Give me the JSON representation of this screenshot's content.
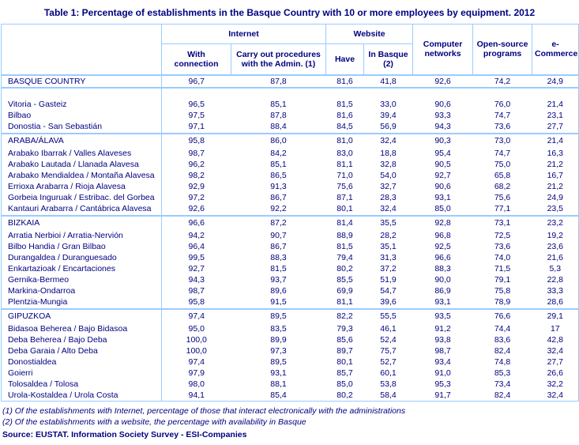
{
  "title": "Table 1: Percentage of establishments in the Basque Country with 10 or more employees by equipment. 2012",
  "colors": {
    "text_navy": "#000080",
    "border_light_blue": "#99CCFF",
    "background": "#FFFFFF"
  },
  "chart_data": {
    "type": "table",
    "title": "Table 1: Percentage of establishments in the Basque Country with 10 or more employees by equipment. 2012",
    "column_groups": [
      {
        "label": "Internet",
        "span": 2
      },
      {
        "label": "Website",
        "span": 2
      }
    ],
    "columns": [
      "With connection",
      "Carry out procedures with the Admin. (1)",
      "Have",
      "In Basque (2)",
      "Computer networks",
      "Open-source programs",
      "e-Commerce"
    ],
    "rows": [
      {
        "label": "BASQUE COUNTRY",
        "values": [
          "96,7",
          "87,8",
          "81,6",
          "41,8",
          "92,6",
          "74,2",
          "24,9"
        ],
        "emphasis": true,
        "sep_after": true
      },
      {
        "blank": true
      },
      {
        "label": "Vitoria - Gasteiz",
        "values": [
          "96,5",
          "85,1",
          "81,5",
          "33,0",
          "90,6",
          "76,0",
          "21,4"
        ]
      },
      {
        "label": "Bilbao",
        "values": [
          "97,5",
          "87,8",
          "81,6",
          "39,4",
          "93,3",
          "74,7",
          "23,1"
        ]
      },
      {
        "label": "Donostia - San Sebastián",
        "values": [
          "97,1",
          "88,4",
          "84,5",
          "56,9",
          "94,3",
          "73,6",
          "27,7"
        ],
        "sep_after": true
      },
      {
        "label": "ARABA/ÁLAVA",
        "values": [
          "95,8",
          "86,0",
          "81,0",
          "32,4",
          "90,3",
          "73,0",
          "21,4"
        ],
        "emphasis": true
      },
      {
        "label": "Arabako Ibarrak / Valles Alaveses",
        "values": [
          "98,7",
          "84,2",
          "83,0",
          "18,8",
          "95,4",
          "74,7",
          "16,3"
        ]
      },
      {
        "label": "Arabako Lautada / Llanada Alavesa",
        "values": [
          "96,2",
          "85,1",
          "81,1",
          "32,8",
          "90,5",
          "75,0",
          "21,2"
        ]
      },
      {
        "label": "Arabako Mendialdea / Montaña Alavesa",
        "values": [
          "98,2",
          "86,5",
          "71,0",
          "54,0",
          "92,7",
          "65,8",
          "16,7"
        ]
      },
      {
        "label": "Errioxa Arabarra / Rioja Alavesa",
        "values": [
          "92,9",
          "91,3",
          "75,6",
          "32,7",
          "90,6",
          "68,2",
          "21,2"
        ]
      },
      {
        "label": "Gorbeia Inguruak / Estribac. del Gorbea",
        "values": [
          "97,2",
          "86,7",
          "87,1",
          "28,3",
          "93,1",
          "75,6",
          "24,9"
        ]
      },
      {
        "label": "Kantauri Arabarra / Cantábrica Alavesa",
        "values": [
          "92,6",
          "92,2",
          "80,1",
          "32,4",
          "85,0",
          "77,1",
          "23,5"
        ],
        "sep_after": true
      },
      {
        "label": "BIZKAIA",
        "values": [
          "96,6",
          "87,2",
          "81,4",
          "35,5",
          "92,8",
          "73,1",
          "23,2"
        ],
        "emphasis": true
      },
      {
        "label": "Arratia Nerbioi / Arratia-Nervión",
        "values": [
          "94,2",
          "90,7",
          "88,9",
          "28,2",
          "96,8",
          "72,5",
          "19,2"
        ]
      },
      {
        "label": "Bilbo Handia / Gran Bilbao",
        "values": [
          "96,4",
          "86,7",
          "81,5",
          "35,1",
          "92,5",
          "73,6",
          "23,6"
        ]
      },
      {
        "label": "Durangaldea / Duranguesado",
        "values": [
          "99,5",
          "88,3",
          "79,4",
          "31,3",
          "96,6",
          "74,0",
          "21,6"
        ]
      },
      {
        "label": "Enkartazioak / Encartaciones",
        "values": [
          "92,7",
          "81,5",
          "80,2",
          "37,2",
          "88,3",
          "71,5",
          "5,3"
        ]
      },
      {
        "label": "Gernika-Bermeo",
        "values": [
          "94,3",
          "93,7",
          "85,5",
          "51,9",
          "90,0",
          "79,1",
          "22,8"
        ]
      },
      {
        "label": "Markina-Ondarroa",
        "values": [
          "98,7",
          "89,6",
          "69,9",
          "54,7",
          "86,9",
          "75,8",
          "33,3"
        ]
      },
      {
        "label": "Plentzia-Mungia",
        "values": [
          "95,8",
          "91,5",
          "81,1",
          "39,6",
          "93,1",
          "78,9",
          "28,6"
        ],
        "sep_after": true
      },
      {
        "label": "GIPUZKOA",
        "values": [
          "97,4",
          "89,5",
          "82,2",
          "55,5",
          "93,5",
          "76,6",
          "29,1"
        ],
        "emphasis": true
      },
      {
        "label": "Bidasoa Beherea / Bajo Bidasoa",
        "values": [
          "95,0",
          "83,5",
          "79,3",
          "46,1",
          "91,2",
          "74,4",
          "17"
        ]
      },
      {
        "label": "Deba Beherea / Bajo Deba",
        "values": [
          "100,0",
          "89,9",
          "85,6",
          "52,4",
          "93,8",
          "83,6",
          "42,8"
        ]
      },
      {
        "label": "Deba Garaia / Alto Deba",
        "values": [
          "100,0",
          "97,3",
          "89,7",
          "75,7",
          "98,7",
          "82,4",
          "32,4"
        ]
      },
      {
        "label": "Donostialdea",
        "values": [
          "97,4",
          "89,5",
          "80,1",
          "52,7",
          "93,4",
          "74,8",
          "27,7"
        ]
      },
      {
        "label": "Goierri",
        "values": [
          "97,9",
          "93,1",
          "85,7",
          "60,1",
          "91,0",
          "85,3",
          "26,6"
        ]
      },
      {
        "label": "Tolosaldea / Tolosa",
        "values": [
          "98,0",
          "88,1",
          "85,0",
          "53,8",
          "95,3",
          "73,4",
          "32,2"
        ]
      },
      {
        "label": "Urola-Kostaldea / Urola Costa",
        "values": [
          "94,1",
          "85,4",
          "80,2",
          "58,4",
          "91,7",
          "82,4",
          "32,4"
        ]
      }
    ]
  },
  "footnotes": [
    "(1) Of the establishments with Internet, percentage of those that interact electronically with the administrations",
    "(2) Of the establishments with a website, the percentage with availability in Basque"
  ],
  "source": "Source: EUSTAT. Information Society Survey - ESI-Companies"
}
